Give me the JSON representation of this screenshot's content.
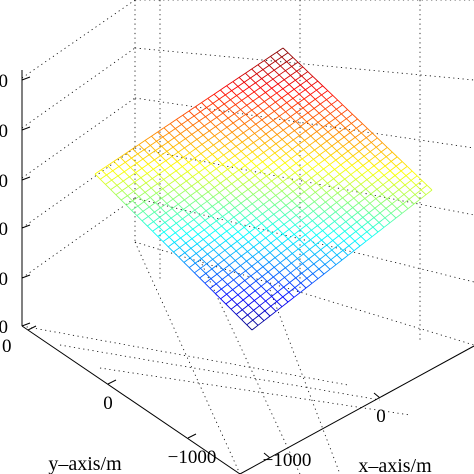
{
  "chart_data": {
    "type": "surface-mesh",
    "xlabel": "x–axis/m",
    "ylabel": "y–axis/m",
    "x_ticks": [
      {
        "value": -1000,
        "label": "−1000"
      },
      {
        "value": 0,
        "label": "0"
      }
    ],
    "y_ticks": [
      {
        "value": 0,
        "label": "0"
      },
      {
        "value": -1000,
        "label": "−1000"
      }
    ],
    "y_edge_tick": "0",
    "z_tick_labels": [
      "0",
      "0",
      "0",
      "0",
      "0",
      "0"
    ],
    "grid": true,
    "colormap": "jet",
    "surface": {
      "shape": "saddle",
      "x_range": [
        -1000,
        1000
      ],
      "y_range": [
        -1000,
        1000
      ],
      "low_corner": "x = 0 (front corner)",
      "high_corner": "x = -1000 side (back corner)"
    }
  }
}
